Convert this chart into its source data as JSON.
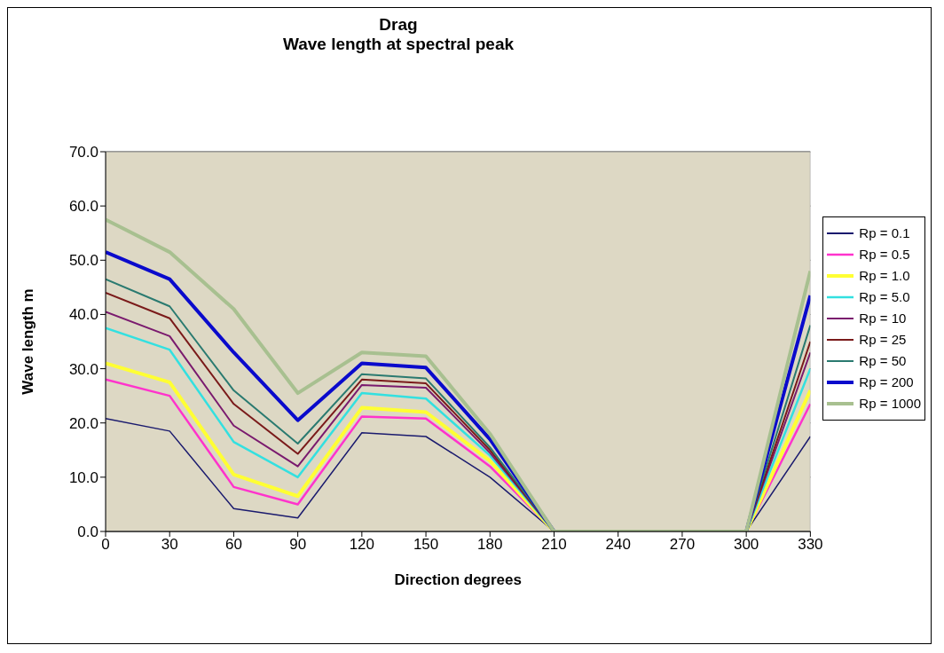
{
  "chart_data": {
    "type": "line",
    "title": "Drag",
    "subtitle": "Wave length at spectral peak",
    "xlabel": "Direction degrees",
    "ylabel": "Wave length m",
    "x": [
      0,
      30,
      60,
      90,
      120,
      150,
      180,
      210,
      240,
      270,
      300,
      330
    ],
    "xlim": [
      0,
      330
    ],
    "xticks": [
      0,
      30,
      60,
      90,
      120,
      150,
      180,
      210,
      240,
      270,
      300,
      330
    ],
    "ylim": [
      0,
      70
    ],
    "yticks": [
      {
        "value": 0,
        "label": "0.0"
      },
      {
        "value": 10,
        "label": "10.0"
      },
      {
        "value": 20,
        "label": "20.0"
      },
      {
        "value": 30,
        "label": "30.0"
      },
      {
        "value": 40,
        "label": "40.0"
      },
      {
        "value": 50,
        "label": "50.0"
      },
      {
        "value": 60,
        "label": "60.0"
      },
      {
        "value": 70,
        "label": "70.0"
      }
    ],
    "grid": "y",
    "legend": "right",
    "marker": "none",
    "line_style": "solid",
    "series": [
      {
        "name": "Rp = 0.1",
        "color": "#1a1a6e",
        "values": [
          20.8,
          18.5,
          4.2,
          2.5,
          18.2,
          17.5,
          10,
          0,
          0,
          0,
          0,
          17.5
        ]
      },
      {
        "name": "Rp = 0.5",
        "color": "#ff33cc",
        "values": [
          28,
          25,
          8.2,
          5,
          21.2,
          20.8,
          12,
          0,
          0,
          0,
          0,
          23.5
        ]
      },
      {
        "name": "Rp = 1.0",
        "color": "#ffff33",
        "values": [
          31,
          27.5,
          10.5,
          6.5,
          22.8,
          22,
          13,
          0,
          0,
          0,
          0,
          26
        ]
      },
      {
        "name": "Rp = 5.0",
        "color": "#33e0e0",
        "values": [
          37.5,
          33.5,
          16.5,
          10,
          25.5,
          24.5,
          14,
          0,
          0,
          0,
          0,
          30
        ]
      },
      {
        "name": "Rp = 10",
        "color": "#7a1a6e",
        "values": [
          40.5,
          36,
          19.5,
          12,
          27,
          26.5,
          14.5,
          0,
          0,
          0,
          0,
          33
        ]
      },
      {
        "name": "Rp = 25",
        "color": "#7a1a1a",
        "values": [
          44,
          39.3,
          23.5,
          14.3,
          28,
          27.3,
          15,
          0,
          0,
          0,
          0,
          35
        ]
      },
      {
        "name": "Rp = 50",
        "color": "#2a7a70",
        "values": [
          46.5,
          41.5,
          26,
          16.2,
          29,
          28.2,
          15.5,
          0,
          0,
          0,
          0,
          38
        ]
      },
      {
        "name": "Rp = 200",
        "color": "#0a0acc",
        "values": [
          51.5,
          46.5,
          33,
          20.5,
          31,
          30.2,
          17,
          0,
          0,
          0,
          0,
          43.5
        ]
      },
      {
        "name": "Rp = 1000",
        "color": "#a8c090",
        "values": [
          57.5,
          51.5,
          41,
          25.5,
          33,
          32.3,
          18,
          0,
          0,
          0,
          0,
          48
        ]
      }
    ]
  }
}
